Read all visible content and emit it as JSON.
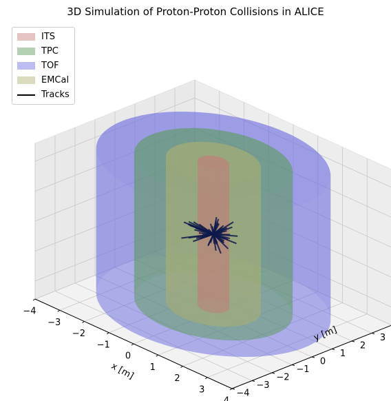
{
  "chart_data": {
    "type": "3d-surface",
    "title": "3D Simulation of Proton-Proton Collisions in ALICE",
    "xlabel": "x [m]",
    "ylabel": "y [m]",
    "zlabel": "",
    "xlim": [
      -4,
      4
    ],
    "ylim": [
      -4,
      4
    ],
    "zlim": [
      -13,
      13
    ],
    "xticks": [
      -4,
      -3,
      -2,
      -1,
      0,
      1,
      2,
      3,
      4
    ],
    "yticks": [
      -4,
      -3,
      -2,
      -1,
      0,
      1,
      2,
      3,
      4
    ],
    "zticks": [
      -10,
      -5,
      0,
      5,
      10
    ],
    "grid": true,
    "legend_position": "top-left",
    "detectors": [
      {
        "name": "ITS",
        "radius": 0.5,
        "z_range": [
          -12,
          12
        ],
        "color": "#c47a7a"
      },
      {
        "name": "TPC",
        "radius": 2.5,
        "z_range": [
          -12,
          12
        ],
        "color": "#5a9a5a"
      },
      {
        "name": "TOF",
        "radius": 3.7,
        "z_range": [
          -12,
          12
        ],
        "color": "#6a6ae0"
      },
      {
        "name": "EMCal",
        "radius": 1.5,
        "z_range": [
          -12,
          12
        ],
        "color": "#b0b070"
      }
    ],
    "tracks": {
      "name": "Tracks",
      "origin": [
        0,
        0,
        0
      ],
      "count": 60,
      "max_length": 1.2,
      "color": "#000000"
    }
  }
}
